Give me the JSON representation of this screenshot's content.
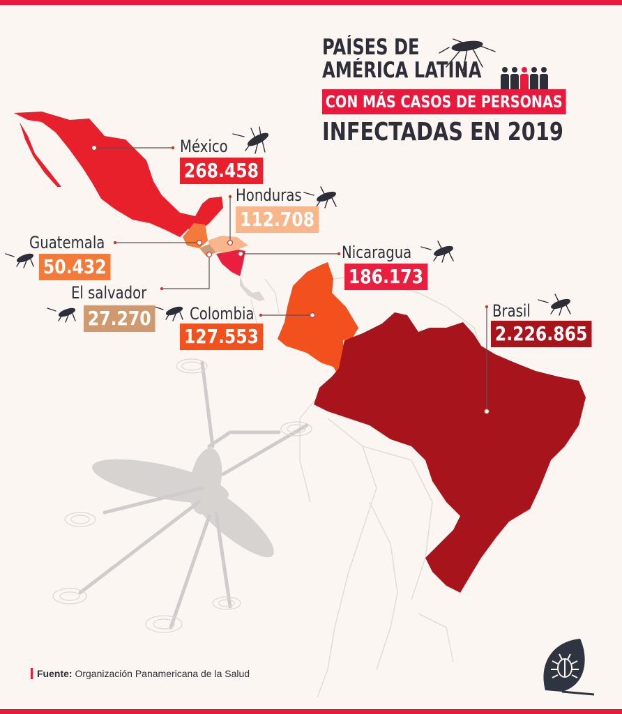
{
  "title": {
    "line1": "PAÍSES DE",
    "line2": "AMÉRICA LATINA",
    "line3": "CON MÁS CASOS DE PERSONAS",
    "line4": "INFECTADAS EN 2019"
  },
  "countries": [
    {
      "name": "México",
      "value": "268.458",
      "color": "#e8202c"
    },
    {
      "name": "Honduras",
      "value": "112.708",
      "color": "#f8b68a"
    },
    {
      "name": "Guatemala",
      "value": "50.432",
      "color": "#f47a3a"
    },
    {
      "name": "Nicaragua",
      "value": "186.173",
      "color": "#ea1f40"
    },
    {
      "name": "El salvador",
      "value": "27.270",
      "color": "#cf9a70"
    },
    {
      "name": "Colombia",
      "value": "127.553",
      "color": "#f2501c"
    },
    {
      "name": "Brasil",
      "value": "2.226.865",
      "color": "#a7141c"
    }
  ],
  "source": {
    "label": "Fuente:",
    "text": "Organización Panamericana de la Salud"
  },
  "icons": [
    "mosquito-icon",
    "people-icon",
    "leaf-bug-logo"
  ],
  "colors": {
    "accent": "#e8193c",
    "text": "#2e2e38",
    "background": "#fbf6f2"
  }
}
